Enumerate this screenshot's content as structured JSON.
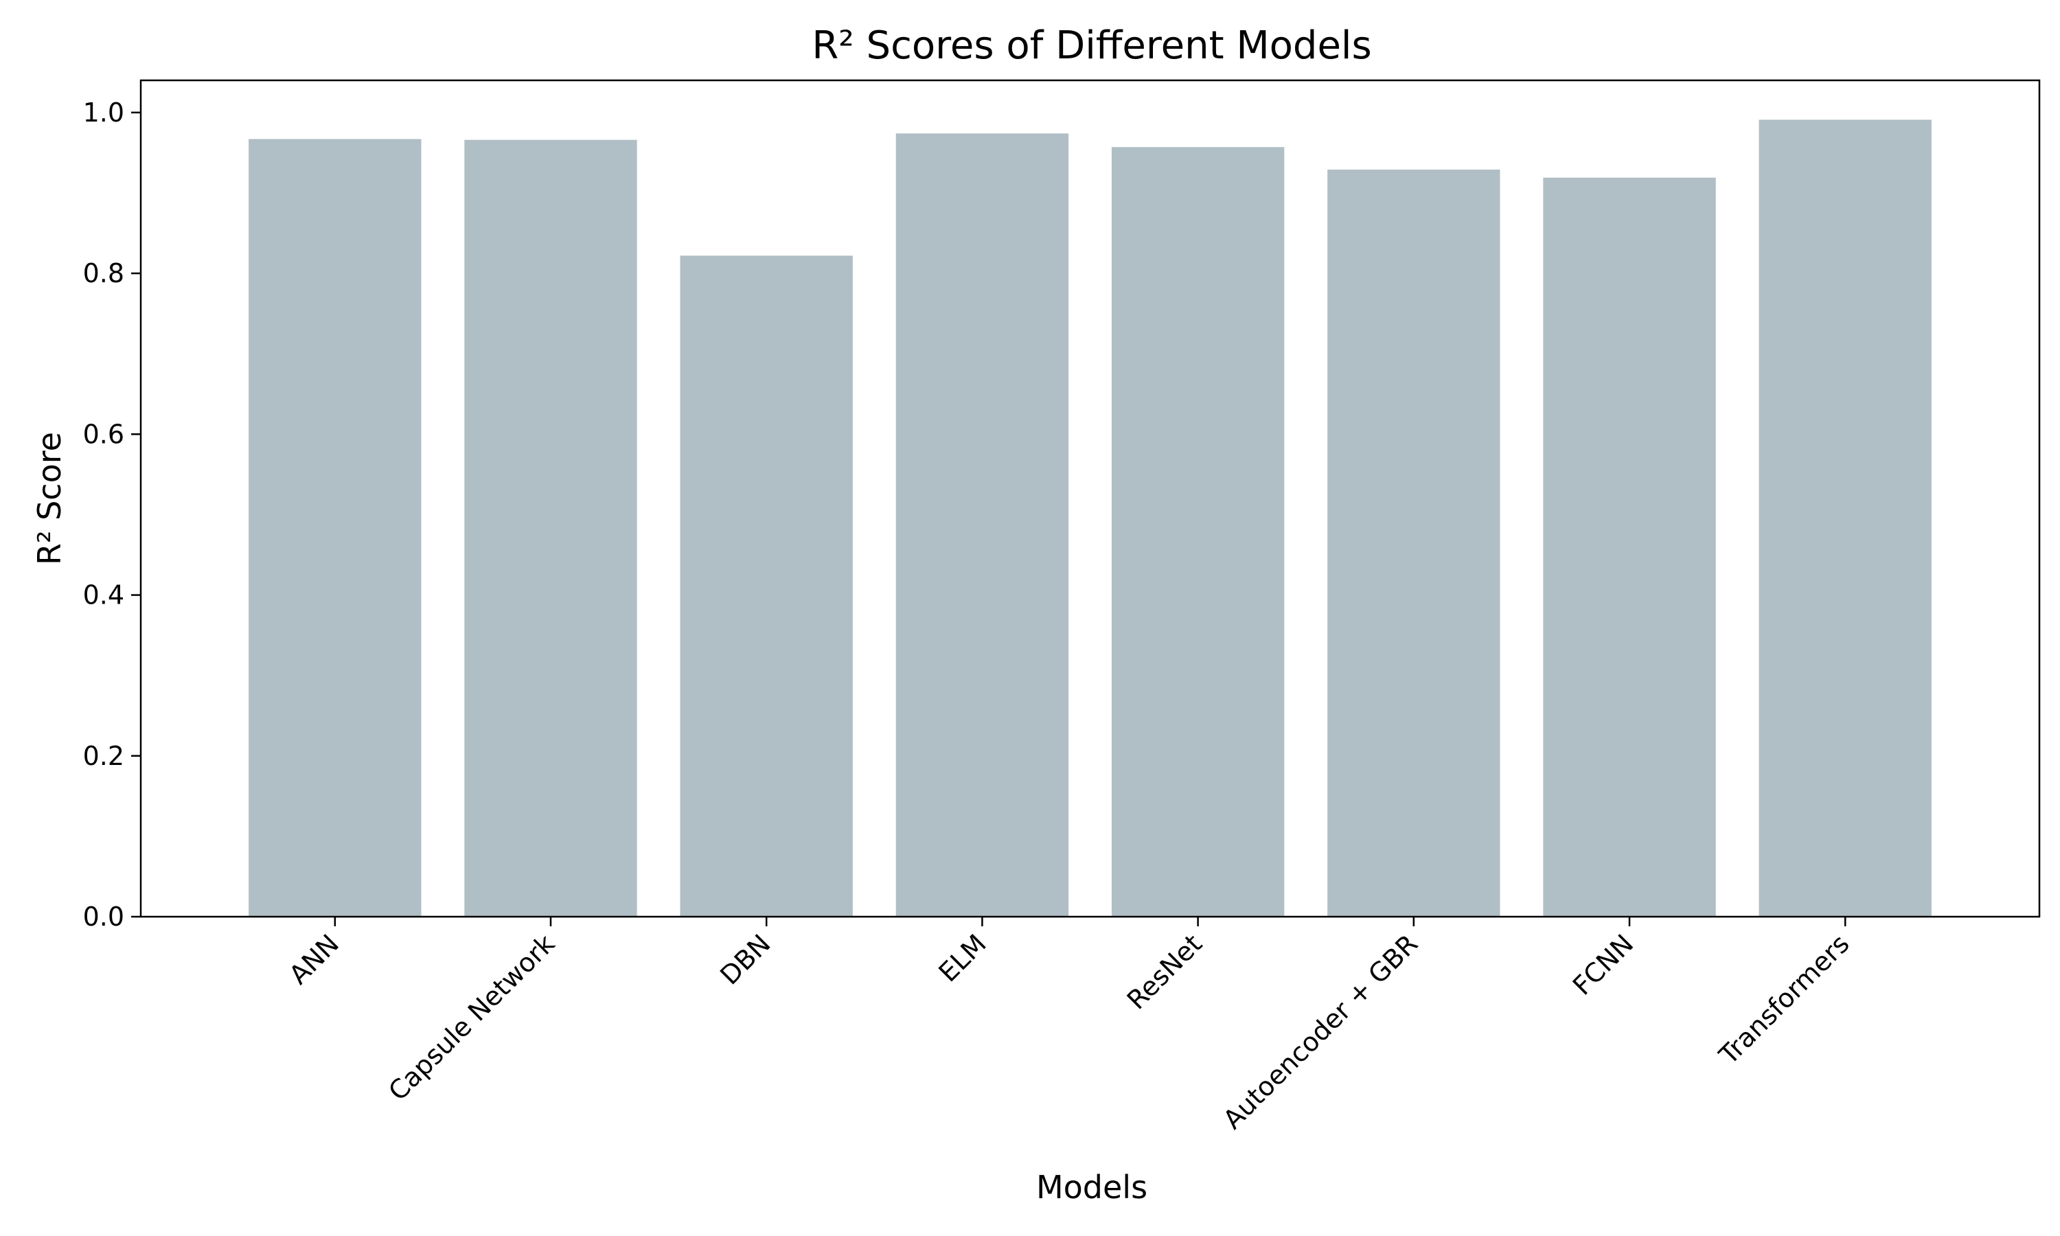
{
  "chart_data": {
    "type": "bar",
    "title": "R² Scores of Different Models",
    "xlabel": "Models",
    "ylabel": "R² Score",
    "categories": [
      "ANN",
      "Capsule Network",
      "DBN",
      "ELM",
      "ResNet",
      "Autoencoder + GBR",
      "FCNN",
      "Transformers"
    ],
    "values": [
      0.967,
      0.966,
      0.822,
      0.974,
      0.957,
      0.929,
      0.919,
      0.991
    ],
    "ylim": [
      0,
      1.04
    ],
    "yticks": [
      0.0,
      0.2,
      0.4,
      0.6,
      0.8,
      1.0
    ],
    "ytick_labels": [
      "0.0",
      "0.2",
      "0.4",
      "0.6",
      "0.8",
      "1.0"
    ],
    "grid": false,
    "legend": "none",
    "bar_color": "#b0bec5"
  }
}
